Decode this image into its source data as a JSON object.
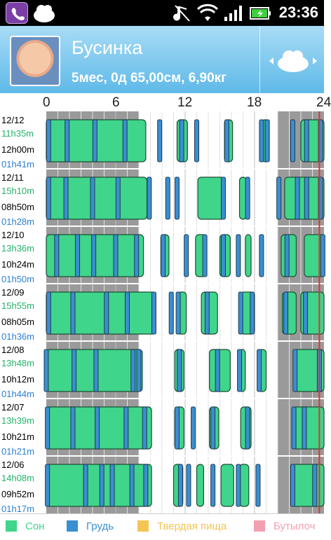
{
  "status_bar": {
    "time": "23:36",
    "icons": [
      "viber-icon",
      "app-icon",
      "music-mute-icon",
      "wifi-icon",
      "signal-icon",
      "battery-icon"
    ]
  },
  "header": {
    "name": "Бусинка",
    "info": "5мес, 0д 65,00см, 6,90кг"
  },
  "axis": {
    "hours": [
      "0",
      "6",
      "12",
      "18",
      "24"
    ],
    "range": [
      0,
      24
    ]
  },
  "colors": {
    "sleep": "#3fd58a",
    "feed": "#3a8fcf",
    "solid": "#f3c552",
    "bottle": "#f2a0b0",
    "night": "#9a9a9a",
    "now": "#e03030"
  },
  "days": [
    {
      "date": "12/12",
      "sleep": "11h35m",
      "awake": "12h00m",
      "feed": "01h41m"
    },
    {
      "date": "12/11",
      "sleep": "15h10m",
      "awake": "08h50m",
      "feed": "01h28m"
    },
    {
      "date": "12/10",
      "sleep": "13h36m",
      "awake": "10h24m",
      "feed": "01h50m"
    },
    {
      "date": "12/09",
      "sleep": "15h55m",
      "awake": "08h05m",
      "feed": "01h36m"
    },
    {
      "date": "12/08",
      "sleep": "13h48m",
      "awake": "10h12m",
      "feed": "01h44m"
    },
    {
      "date": "12/07",
      "sleep": "13h39m",
      "awake": "10h21m",
      "feed": "01h21m"
    },
    {
      "date": "12/06",
      "sleep": "14h08m",
      "awake": "09h52m",
      "feed": "01h17m"
    }
  ],
  "legend": {
    "sleep": "Сон",
    "feed": "Грудь",
    "solid": "Твердая пища",
    "bottle": "Бутылоч"
  }
}
